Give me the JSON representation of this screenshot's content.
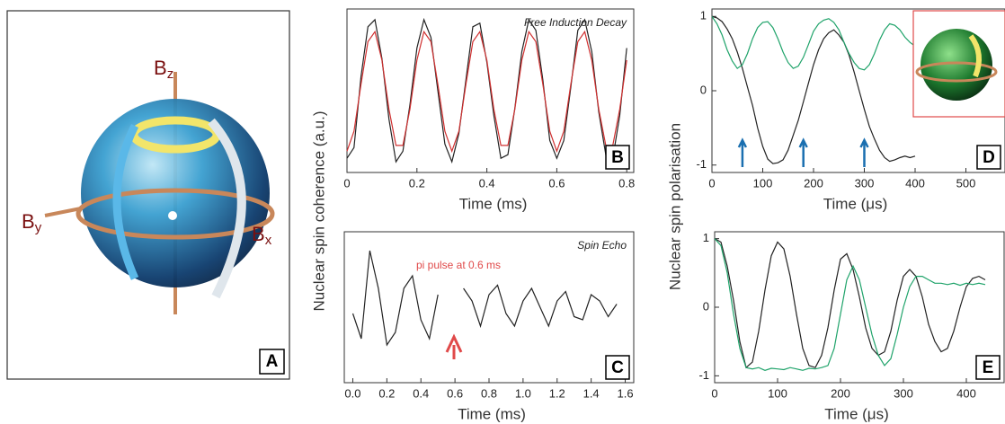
{
  "illustration": {
    "axes": [
      {
        "name": "B",
        "sub": "z"
      },
      {
        "name": "B",
        "sub": "y"
      },
      {
        "name": "B",
        "sub": "x"
      }
    ],
    "panel_label": "A"
  },
  "chart_data": [
    {
      "type": "line",
      "annotation": "Free Induction Decay",
      "panel_label": "B",
      "xlabel": "Time (ms)",
      "ylabel": "Nuclear  spin coherence (a.u.)",
      "xlim": [
        0,
        0.82
      ],
      "ylim": [
        -1.15,
        1.15
      ],
      "xticks": [
        0,
        0.2,
        0.4,
        0.6,
        0.8
      ],
      "x": [
        0,
        0.02,
        0.04,
        0.06,
        0.08,
        0.1,
        0.12,
        0.14,
        0.16,
        0.18,
        0.2,
        0.22,
        0.24,
        0.26,
        0.28,
        0.3,
        0.32,
        0.34,
        0.36,
        0.38,
        0.4,
        0.42,
        0.44,
        0.46,
        0.48,
        0.5,
        0.52,
        0.54,
        0.56,
        0.58,
        0.6,
        0.62,
        0.64,
        0.66,
        0.68,
        0.7,
        0.72,
        0.74,
        0.76,
        0.78,
        0.8
      ],
      "series": [
        {
          "color": "#222222",
          "values": [
            -0.95,
            -0.8,
            0.2,
            0.9,
            1.0,
            0.45,
            -0.4,
            -1.0,
            -0.85,
            -0.2,
            0.6,
            1.0,
            0.75,
            0.0,
            -0.75,
            -1.0,
            -0.6,
            0.15,
            0.9,
            0.95,
            0.4,
            -0.35,
            -0.95,
            -0.9,
            -0.25,
            0.55,
            1.0,
            0.85,
            0.15,
            -0.7,
            -0.95,
            -0.7,
            0.05,
            0.85,
            1.0,
            0.55,
            -0.3,
            -0.9,
            -0.95,
            -0.35,
            0.6
          ]
        },
        {
          "color": "#d03030",
          "values": [
            -0.85,
            -0.57,
            0.09,
            0.69,
            0.83,
            0.43,
            -0.26,
            -0.77,
            -0.77,
            -0.26,
            0.43,
            0.83,
            0.69,
            0.09,
            -0.57,
            -0.85,
            -0.57,
            0.09,
            0.69,
            0.83,
            0.43,
            -0.26,
            -0.77,
            -0.77,
            -0.26,
            0.43,
            0.83,
            0.69,
            0.09,
            -0.57,
            -0.85,
            -0.57,
            0.09,
            0.69,
            0.83,
            0.43,
            -0.26,
            -0.77,
            -0.77,
            -0.26,
            0.43
          ]
        }
      ]
    },
    {
      "type": "line",
      "annotation": "Spin Echo",
      "note": "pi pulse at 0.6 ms",
      "panel_label": "C",
      "xlabel": "Time (ms)",
      "xlim": [
        -0.05,
        1.65
      ],
      "ylim": [
        -1.2,
        1.2
      ],
      "xticks": [
        {
          "value": 0,
          "label": "0.0"
        },
        0.2,
        0.4,
        0.6,
        0.8,
        {
          "value": 1,
          "label": "1.0"
        },
        1.2,
        1.4,
        1.6
      ],
      "x": [
        0,
        0.05,
        0.1,
        0.15,
        0.2,
        0.25,
        0.3,
        0.35,
        0.4,
        0.45,
        0.5,
        0.55,
        0.6,
        0.65,
        0.7,
        0.75,
        0.8,
        0.85,
        0.9,
        0.95,
        1,
        1.05,
        1.1,
        1.15,
        1.2,
        1.25,
        1.3,
        1.35,
        1.4,
        1.45,
        1.5,
        1.55
      ],
      "series": [
        {
          "color": "#222222",
          "values": [
            -0.1,
            -0.5,
            0.9,
            0.3,
            -0.6,
            -0.4,
            0.3,
            0.5,
            -0.2,
            -0.5,
            0.2,
            null,
            null,
            0.3,
            0.1,
            -0.3,
            0.2,
            0.35,
            -0.1,
            -0.3,
            0.1,
            0.3,
            0.0,
            -0.3,
            0.1,
            0.25,
            -0.15,
            -0.2,
            0.2,
            0.1,
            -0.15,
            0.05
          ]
        }
      ]
    },
    {
      "type": "line",
      "panel_label": "D",
      "xlabel": "Time (μs)",
      "ylabel": "Nuclear spin polarisation",
      "xlim": [
        0,
        577
      ],
      "ylim": [
        -1.1,
        1.1
      ],
      "xticks": [
        0,
        100,
        200,
        300,
        400,
        500
      ],
      "yticks": [
        -1,
        0,
        1
      ],
      "markers": [
        60,
        180,
        300
      ],
      "marker_color": "#1a6fb0",
      "x": [
        0,
        10,
        20,
        30,
        40,
        50,
        60,
        70,
        80,
        90,
        100,
        110,
        120,
        130,
        140,
        150,
        160,
        170,
        180,
        190,
        200,
        210,
        220,
        230,
        240,
        250,
        260,
        270,
        280,
        290,
        300,
        310,
        320,
        330,
        340,
        350,
        360,
        370,
        380,
        390,
        400
      ],
      "series": [
        {
          "color": "#222222",
          "values": [
            1.0,
            0.98,
            0.93,
            0.83,
            0.7,
            0.52,
            0.3,
            0.05,
            -0.2,
            -0.5,
            -0.75,
            -0.92,
            -0.98,
            -0.97,
            -0.93,
            -0.8,
            -0.6,
            -0.4,
            -0.15,
            0.1,
            0.35,
            0.55,
            0.7,
            0.78,
            0.82,
            0.75,
            0.65,
            0.48,
            0.25,
            0.0,
            -0.25,
            -0.48,
            -0.65,
            -0.8,
            -0.9,
            -0.95,
            -0.93,
            -0.9,
            -0.88,
            -0.9,
            -0.88
          ]
        },
        {
          "color": "#1fa36a",
          "values": [
            1.0,
            0.9,
            0.75,
            0.55,
            0.4,
            0.3,
            0.35,
            0.5,
            0.7,
            0.85,
            0.92,
            0.93,
            0.85,
            0.7,
            0.52,
            0.38,
            0.3,
            0.33,
            0.45,
            0.62,
            0.8,
            0.9,
            0.95,
            0.97,
            0.92,
            0.82,
            0.65,
            0.5,
            0.38,
            0.3,
            0.28,
            0.35,
            0.5,
            0.68,
            0.82,
            0.9,
            0.88,
            0.82,
            0.72,
            0.65,
            0.6
          ]
        }
      ]
    },
    {
      "type": "line",
      "panel_label": "E",
      "xlabel": "Time (μs)",
      "xlim": [
        0,
        460
      ],
      "ylim": [
        -1.1,
        1.1
      ],
      "xticks": [
        0,
        100,
        200,
        300,
        400
      ],
      "yticks": [
        -1,
        0,
        1
      ],
      "x": [
        0,
        10,
        20,
        30,
        40,
        50,
        60,
        70,
        80,
        90,
        100,
        110,
        120,
        130,
        140,
        150,
        160,
        170,
        180,
        190,
        200,
        210,
        220,
        230,
        240,
        250,
        260,
        270,
        280,
        290,
        300,
        310,
        320,
        330,
        340,
        350,
        360,
        370,
        380,
        390,
        400,
        410,
        420,
        430
      ],
      "series": [
        {
          "color": "#222222",
          "values": [
            1.0,
            0.95,
            0.6,
            0.1,
            -0.5,
            -0.88,
            -0.8,
            -0.35,
            0.25,
            0.75,
            0.95,
            0.85,
            0.45,
            -0.1,
            -0.6,
            -0.85,
            -0.88,
            -0.7,
            -0.3,
            0.25,
            0.7,
            0.78,
            0.55,
            0.15,
            -0.3,
            -0.6,
            -0.7,
            -0.65,
            -0.35,
            0.1,
            0.45,
            0.55,
            0.45,
            0.15,
            -0.25,
            -0.5,
            -0.65,
            -0.6,
            -0.35,
            0.0,
            0.3,
            0.42,
            0.45,
            0.4
          ]
        },
        {
          "color": "#1fa36a",
          "values": [
            1.0,
            0.9,
            0.5,
            -0.1,
            -0.6,
            -0.88,
            -0.9,
            -0.88,
            -0.92,
            -0.89,
            -0.9,
            -0.91,
            -0.88,
            -0.9,
            -0.92,
            -0.89,
            -0.9,
            -0.88,
            -0.85,
            -0.6,
            -0.1,
            0.4,
            0.6,
            0.4,
            0.0,
            -0.4,
            -0.7,
            -0.85,
            -0.75,
            -0.4,
            0.0,
            0.3,
            0.45,
            0.45,
            0.4,
            0.35,
            0.35,
            0.33,
            0.35,
            0.32,
            0.35,
            0.33,
            0.35,
            0.33
          ]
        }
      ]
    }
  ]
}
